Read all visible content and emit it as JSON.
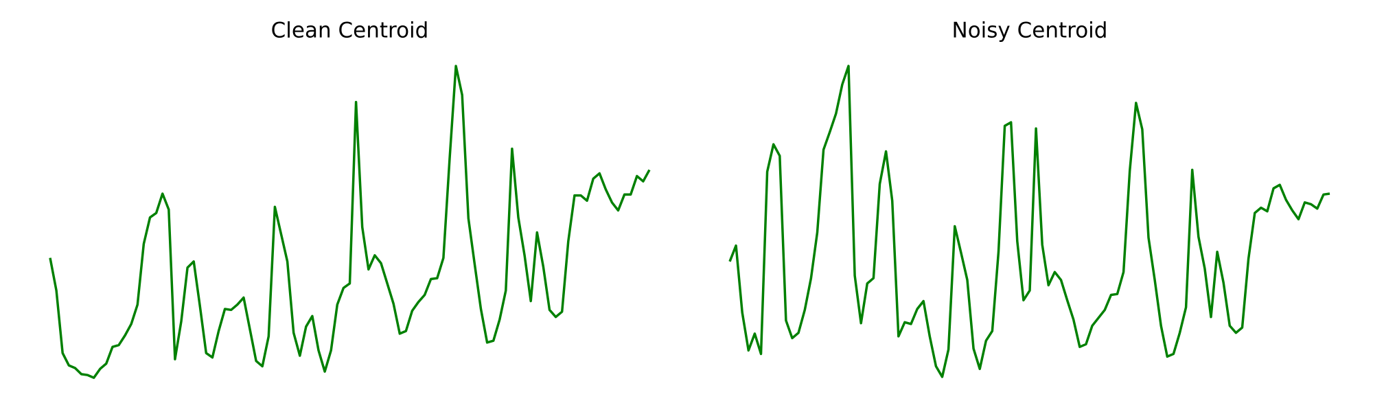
{
  "chart_data": [
    {
      "type": "line",
      "title": "Clean Centroid",
      "color": "#008000",
      "ylim": [
        0,
        400
      ],
      "values": [
        157,
        120,
        49,
        35,
        32,
        25,
        24,
        21,
        31,
        37,
        56,
        58,
        69,
        82,
        104,
        173,
        203,
        208,
        230,
        212,
        42,
        85,
        146,
        153,
        102,
        49,
        44,
        74,
        99,
        98,
        104,
        112,
        76,
        40,
        34,
        68,
        215,
        184,
        153,
        72,
        46,
        79,
        91,
        52,
        28,
        52,
        104,
        123,
        128,
        334,
        192,
        144,
        160,
        151,
        128,
        105,
        71,
        74,
        97,
        107,
        115,
        133,
        134,
        157,
        270,
        375,
        342,
        202,
        150,
        99,
        61,
        63,
        87,
        120,
        281,
        203,
        160,
        108,
        186,
        147,
        98,
        90,
        96,
        176,
        228,
        228,
        222,
        247,
        253,
        235,
        220,
        211,
        229,
        229,
        250,
        244,
        257
      ]
    },
    {
      "type": "line",
      "title": "Noisy Centroid",
      "color": "#008000",
      "ylim": [
        0,
        400
      ],
      "values": [
        153,
        171,
        95,
        52,
        71,
        48,
        255,
        286,
        273,
        86,
        66,
        72,
        98,
        134,
        186,
        280,
        300,
        321,
        354,
        375,
        137,
        83,
        128,
        134,
        241,
        278,
        222,
        68,
        84,
        82,
        99,
        108,
        68,
        34,
        22,
        53,
        193,
        163,
        132,
        54,
        31,
        63,
        74,
        164,
        307,
        311,
        176,
        109,
        120,
        304,
        172,
        126,
        141,
        132,
        109,
        87,
        56,
        59,
        80,
        89,
        98,
        115,
        116,
        141,
        256,
        333,
        303,
        180,
        132,
        80,
        45,
        48,
        72,
        101,
        257,
        181,
        145,
        90,
        164,
        129,
        80,
        72,
        78,
        156,
        208,
        214,
        210,
        236,
        240,
        223,
        211,
        201,
        220,
        218,
        213,
        229,
        230
      ]
    }
  ]
}
